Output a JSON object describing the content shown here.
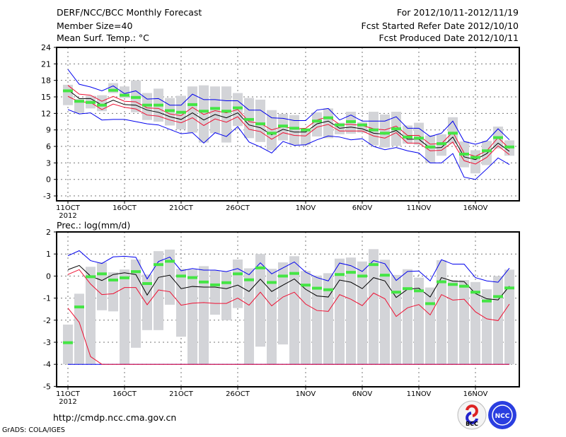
{
  "header": {
    "title": "DERF/NCC/BCC Monthly Forecast",
    "member_size": "Member Size=40",
    "variable": "Mean Surf. Temp.: °C",
    "period": "For 2012/10/11-2012/11/19",
    "started": "Fcst Started Refer Date 2012/10/10",
    "produced": "Fcst Produced Date 2012/10/11"
  },
  "footer": {
    "url": "http://cmdp.ncc.cma.gov.cn",
    "grads": "GrADS: COLA/IGES",
    "logo_bcc": "BCC",
    "logo_ncc": "NCC"
  },
  "colors": {
    "box": "#d3d4d8",
    "green": "#44e544",
    "mean": "#000000",
    "red": "#ee1133",
    "blue": "#0000ee"
  },
  "chart_data": [
    {
      "type": "line",
      "title": "Mean Surf. Temp.: °C",
      "x_tick_labels": [
        "11OCT",
        "16OCT",
        "21OCT",
        "26OCT",
        "1NOV",
        "6NOV",
        "11NOV",
        "16NOV"
      ],
      "x_tick_days": [
        0,
        5,
        10,
        15,
        21,
        26,
        31,
        36
      ],
      "year_label": "2012",
      "ylim": [
        -4.5,
        24
      ],
      "y_ticks": [
        24,
        21,
        18,
        15,
        12,
        9,
        6,
        3,
        0,
        -3
      ],
      "grid": true,
      "n_days": 40,
      "mean": [
        16.3,
        14.7,
        14.7,
        13.5,
        14.4,
        13.6,
        13.5,
        12.6,
        12.2,
        11.4,
        10.9,
        12.1,
        10.8,
        11.8,
        11.2,
        12.1,
        9.9,
        9.4,
        8.1,
        9.1,
        8.6,
        8.6,
        10.1,
        10.6,
        9.3,
        9.5,
        9.2,
        8.4,
        8.2,
        8.9,
        7.3,
        7.3,
        5.7,
        5.8,
        7.7,
        4.1,
        3.6,
        4.7,
        6.6,
        5.1
      ],
      "red_upper": [
        17.1,
        15.5,
        15.3,
        14.2,
        15.1,
        14.2,
        14.1,
        13.0,
        12.9,
        11.9,
        11.6,
        13.1,
        11.8,
        12.5,
        12.1,
        12.7,
        10.5,
        10.2,
        9.0,
        9.6,
        9.2,
        9.3,
        10.8,
        11.4,
        10.0,
        10.0,
        9.8,
        9.2,
        9.0,
        9.7,
        8.0,
        8.0,
        6.4,
        6.5,
        8.6,
        4.8,
        4.2,
        5.2,
        7.6,
        5.6
      ],
      "red_lower": [
        15.1,
        14.1,
        14.0,
        12.7,
        13.7,
        13.1,
        12.8,
        11.7,
        11.5,
        10.8,
        10.3,
        11.2,
        9.8,
        11.0,
        10.4,
        11.4,
        9.1,
        8.7,
        7.3,
        8.5,
        8.0,
        7.9,
        9.5,
        10.0,
        8.8,
        8.8,
        8.8,
        7.9,
        7.5,
        8.5,
        6.6,
        6.6,
        5.2,
        5.3,
        6.8,
        3.4,
        2.8,
        4.0,
        6.1,
        4.5
      ],
      "blue_max": [
        20,
        17.3,
        16.8,
        16.1,
        17,
        15.6,
        16.1,
        14.6,
        14.7,
        13.5,
        13.5,
        15.5,
        14.5,
        14.5,
        14.3,
        14.3,
        12.6,
        12.6,
        11.2,
        11.1,
        10.7,
        10.7,
        12.6,
        12.9,
        10.8,
        11.7,
        10.6,
        10.6,
        10.6,
        11.4,
        9.3,
        9.3,
        7.8,
        8.4,
        10.6,
        6.9,
        6.4,
        7.0,
        9.2,
        7.2
      ],
      "blue_min": [
        12.7,
        11.9,
        12.1,
        10.8,
        10.9,
        10.9,
        10.5,
        10.1,
        9.9,
        9.1,
        8.3,
        8.5,
        6.6,
        8.5,
        7.8,
        9.6,
        6.8,
        5.9,
        4.8,
        6.9,
        6.2,
        6.3,
        7.2,
        7.9,
        7.7,
        7.2,
        7.4,
        6.0,
        5.4,
        5.8,
        5.2,
        4.8,
        3.0,
        3.0,
        4.7,
        0.4,
        0.0,
        1.9,
        3.9,
        2.7
      ],
      "box_low": [
        13.5,
        12.1,
        12.9,
        12.4,
        15.7,
        14.8,
        12.2,
        10.8,
        10.5,
        9.8,
        9.1,
        8.5,
        6.7,
        8.4,
        6.7,
        9.7,
        7.5,
        6.8,
        5.3,
        7.1,
        6.3,
        6.3,
        7.8,
        7.5,
        8.2,
        8.3,
        8.5,
        6.2,
        5.8,
        6.1,
        6.5,
        6.3,
        3.0,
        4.3,
        6.5,
        2.2,
        1.1,
        2.6,
        5.6,
        4.3
      ],
      "box_high": [
        17.2,
        14.6,
        15.2,
        15.3,
        17.5,
        16.9,
        18.0,
        15.7,
        16.5,
        14.8,
        15.2,
        16.9,
        17.1,
        16.9,
        16.9,
        15.7,
        14.8,
        14.5,
        12.6,
        11.9,
        11.7,
        9.2,
        12.2,
        12.9,
        10.3,
        12.3,
        10.4,
        12.3,
        11.8,
        12.3,
        9.8,
        10.3,
        8.0,
        8.2,
        11.3,
        6.9,
        5.3,
        7.0,
        9.6,
        7.1
      ],
      "green": [
        16.1,
        14.2,
        14.0,
        13.5,
        16.2,
        15.3,
        14.9,
        13.5,
        13.5,
        12.5,
        12.2,
        13.6,
        12.4,
        12.9,
        12.4,
        13.0,
        10.9,
        10.1,
        8.4,
        9.7,
        9.3,
        9.0,
        10.6,
        11.2,
        9.9,
        10.5,
        9.9,
        9.0,
        8.4,
        9.2,
        7.7,
        7.5,
        5.9,
        6.5,
        8.4,
        4.6,
        4.0,
        5.2,
        7.6,
        5.9
      ]
    },
    {
      "type": "line",
      "title": "Prec.: log(mm/d)",
      "x_tick_labels": [
        "11OCT",
        "16OCT",
        "21OCT",
        "26OCT",
        "1NOV",
        "6NOV",
        "11NOV",
        "16NOV"
      ],
      "x_tick_days": [
        0,
        5,
        10,
        15,
        21,
        26,
        31,
        36
      ],
      "year_label": "2012",
      "ylim": [
        -5,
        2
      ],
      "y_ticks": [
        2,
        1,
        0,
        -1,
        -2,
        -3,
        -4,
        -5
      ],
      "grid": true,
      "n_days": 40,
      "mean": [
        0.29,
        0.48,
        0,
        -0.2,
        0.07,
        0.15,
        0.07,
        -0.86,
        -0.06,
        0.04,
        -0.57,
        -0.47,
        -0.5,
        -0.5,
        -0.57,
        -0.41,
        -0.7,
        -0.14,
        -0.7,
        -0.41,
        -0.13,
        -0.6,
        -0.9,
        -0.95,
        -0.18,
        -0.28,
        -0.57,
        -0.07,
        -0.22,
        -0.97,
        -0.6,
        -0.55,
        -0.95,
        -0.07,
        -0.23,
        -0.25,
        -0.79,
        -1.03,
        -1.08,
        -0.46
      ],
      "red_upper": [
        0.07,
        0.29,
        -0.36,
        -0.84,
        -0.8,
        -0.52,
        -0.52,
        -1.3,
        -0.63,
        -0.71,
        -1.32,
        -1.23,
        -1.2,
        -1.24,
        -1.24,
        -1.0,
        -1.32,
        -0.73,
        -1.35,
        -0.95,
        -0.73,
        -1.27,
        -1.56,
        -1.6,
        -0.84,
        -1.05,
        -1.34,
        -0.77,
        -1.03,
        -1.83,
        -1.44,
        -1.29,
        -1.76,
        -0.84,
        -1.09,
        -1.05,
        -1.62,
        -1.94,
        -2.02,
        -1.27
      ],
      "red_lower": [
        -1.45,
        -2.1,
        -3.65,
        -4,
        -4,
        -4,
        -4,
        -4,
        -4,
        -4,
        -4,
        -4,
        -4,
        -4,
        -4,
        -4,
        -4,
        -4,
        -4,
        -4,
        -4,
        -4,
        -4,
        -4,
        -4,
        -4,
        -4,
        -4,
        -4,
        -4,
        -4,
        -4,
        -4,
        -4,
        -4,
        -4,
        -4,
        -4,
        -4,
        -4
      ],
      "blue_max": [
        0.92,
        1.15,
        0.7,
        0.57,
        0.87,
        0.9,
        0.85,
        -0.13,
        0.66,
        0.86,
        0.24,
        0.34,
        0.27,
        0.27,
        0.2,
        0.34,
        0.06,
        0.6,
        0.1,
        0.37,
        0.64,
        0.18,
        -0.07,
        -0.22,
        0.59,
        0.47,
        0.21,
        0.7,
        0.56,
        -0.2,
        0.21,
        0.23,
        -0.22,
        0.74,
        0.54,
        0.54,
        -0.07,
        -0.22,
        -0.28,
        0.36
      ],
      "blue_min": [
        -4,
        -4,
        -4,
        -4,
        -4,
        -4,
        -4,
        -4,
        -4,
        -4,
        -4,
        -4,
        -4,
        -4,
        -4,
        -4,
        -4,
        -4,
        -4,
        -4,
        -4,
        -4,
        -4,
        -4,
        -4,
        -4,
        -4,
        -4,
        -4,
        -4,
        -4,
        -4,
        -4,
        -4,
        -4,
        -4,
        -4,
        -4,
        -4,
        -4
      ],
      "box_low": [
        -4,
        -4,
        -4,
        -1.55,
        -1.6,
        -4,
        -3.25,
        -2.45,
        -2.45,
        -1.3,
        -2.75,
        -4,
        -4,
        -1.75,
        -2.0,
        -1.45,
        -4,
        -3.2,
        -4,
        -3.1,
        -4,
        -4,
        -4,
        -4,
        -4,
        -4,
        -4,
        -4,
        -4,
        -4,
        -4,
        -4,
        -4,
        -4,
        -4,
        -4,
        -4,
        -4,
        -4,
        -4
      ],
      "box_high": [
        -2.2,
        -0.8,
        0.42,
        0.62,
        0.17,
        0.3,
        0.75,
        0.07,
        1.13,
        1.2,
        0.33,
        0.3,
        0.45,
        0.25,
        0.2,
        0.75,
        0.35,
        1.0,
        0.33,
        0.62,
        0.9,
        0.23,
        0.02,
        0.13,
        0.79,
        0.84,
        0.66,
        1.22,
        0.74,
        0.05,
        0.31,
        -0.07,
        -0.52,
        0.72,
        -0.18,
        -0.18,
        -0.27,
        -0.6,
        0.0,
        0.29
      ],
      "green": [
        -3.02,
        -1.4,
        -0.03,
        0.1,
        -0.18,
        -0.08,
        0.2,
        -0.34,
        0.52,
        0.67,
        0.0,
        -0.07,
        -0.27,
        -0.4,
        -0.3,
        0.1,
        -0.17,
        0.37,
        -0.29,
        0.0,
        0.12,
        -0.41,
        -0.55,
        -0.62,
        0.07,
        0.17,
        0.0,
        0.52,
        0.04,
        -0.73,
        -0.57,
        -0.67,
        -1.25,
        -0.26,
        -0.38,
        -0.46,
        -0.73,
        -1.13,
        -0.93,
        -0.54
      ]
    }
  ]
}
